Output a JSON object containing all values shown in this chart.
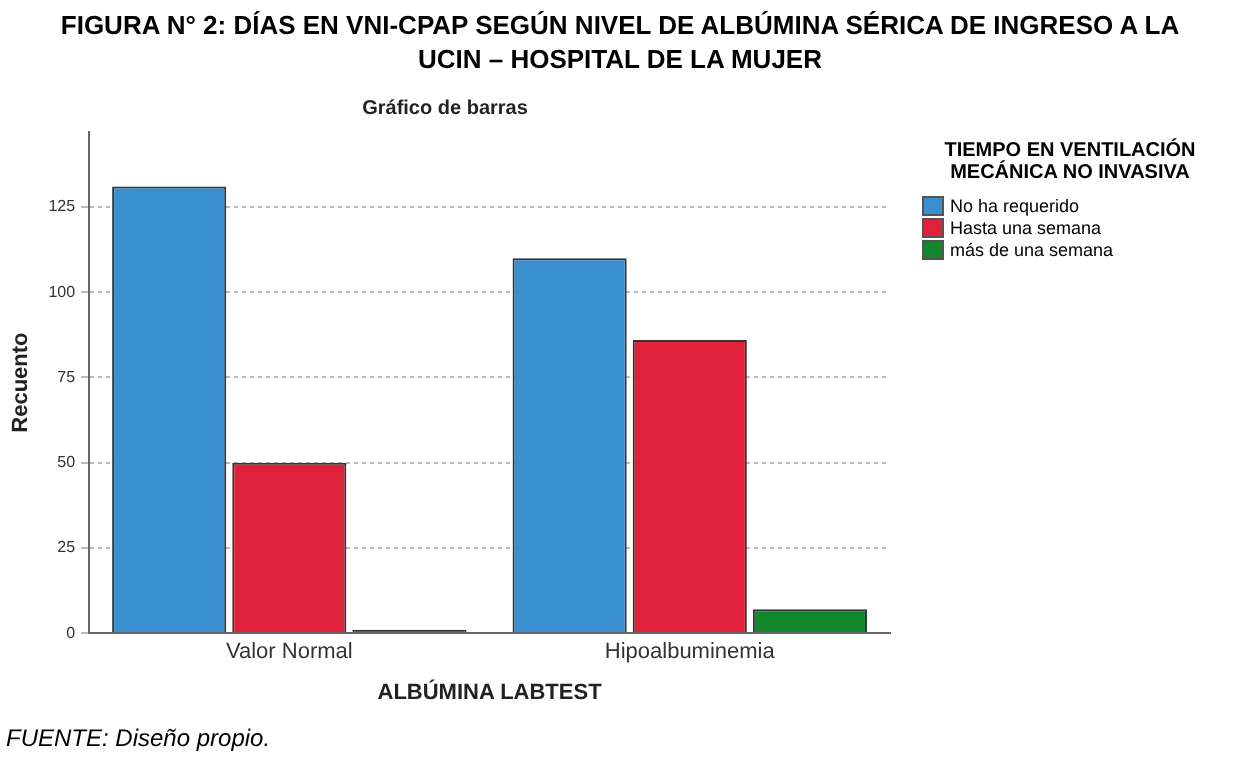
{
  "chart_data": {
    "type": "bar",
    "title": "FIGURA N° 2: DÍAS EN VNI-CPAP SEGÚN NIVEL DE ALBÚMINA SÉRICA DE INGRESO A LA UCIN – HOSPITAL DE LA MUJER",
    "subtitle": "Gráfico de barras",
    "xlabel": "ALBÚMINA LABTEST",
    "ylabel": "Recuento",
    "legend_title": "TIEMPO EN VENTILACIÓN MECÁNICA NO INVASIVA",
    "annotations": [
      "FUENTE: Diseño propio."
    ],
    "categories": [
      "Valor Normal",
      "Hipoalbuminemia"
    ],
    "series": [
      {
        "name": "No ha requerido",
        "color": "#3a8fd0",
        "values": [
          131,
          110
        ]
      },
      {
        "name": "Hasta una semana",
        "color": "#e0213a",
        "values": [
          50,
          86
        ]
      },
      {
        "name": "más de una semana",
        "color": "#11862d",
        "values": [
          1,
          7
        ]
      }
    ],
    "ylim": [
      0,
      147
    ],
    "yticks": [
      0,
      25,
      50,
      75,
      100,
      125
    ],
    "grid": "y",
    "legend": "right"
  }
}
